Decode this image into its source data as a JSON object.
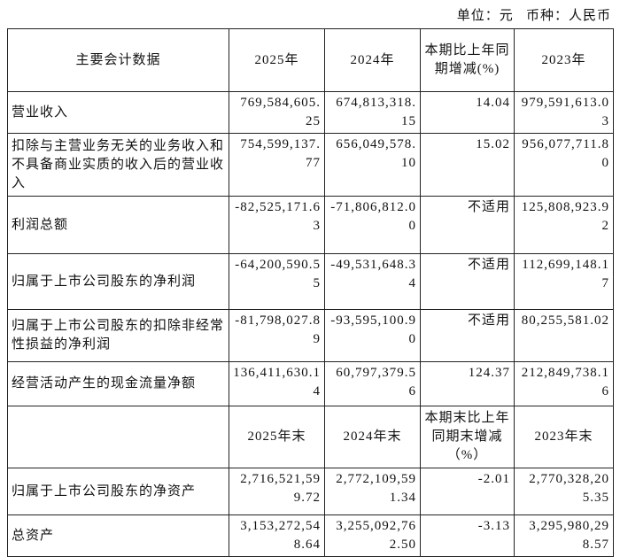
{
  "unit_line": "单位：元   币种：人民币",
  "table": {
    "header": [
      "主要会计数据",
      "2025年",
      "2024年",
      "本期比上年同期增减(%)",
      "2023年"
    ],
    "rows": [
      [
        "营业收入",
        "769,584,605.25",
        "674,813,318.15",
        "14.04",
        "979,591,613.03"
      ],
      [
        "扣除与主营业务无关的业务收入和不具备商业实质的收入后的营业收入",
        "754,599,137.77",
        "656,049,578.10",
        "15.02",
        "956,077,711.80"
      ],
      [
        "利润总额",
        "-82,525,171.63",
        "-71,806,812.00",
        "不适用",
        "125,808,923.92"
      ],
      [
        "归属于上市公司股东的净利润",
        "-64,200,590.55",
        "-49,531,648.34",
        "不适用",
        "112,699,148.17"
      ],
      [
        "归属于上市公司股东的扣除非经常性损益的净利润",
        "-81,798,027.89",
        "-93,595,100.90",
        "不适用",
        "80,255,581.02"
      ],
      [
        "经营活动产生的现金流量净额",
        "136,411,630.14",
        "60,797,379.56",
        "124.37",
        "212,849,738.16"
      ]
    ],
    "header2": [
      "2025年末",
      "2024年末",
      "本期末比上年同期末增减（%）",
      "2023年末"
    ],
    "rows2": [
      [
        "归属于上市公司股东的净资产",
        "2,716,521,599.72",
        "2,772,109,591.34",
        "-2.01",
        "2,770,328,205.35"
      ],
      [
        "总资产",
        "3,153,272,548.64",
        "3,255,092,762.50",
        "-3.13",
        "3,295,980,298.57"
      ]
    ]
  }
}
